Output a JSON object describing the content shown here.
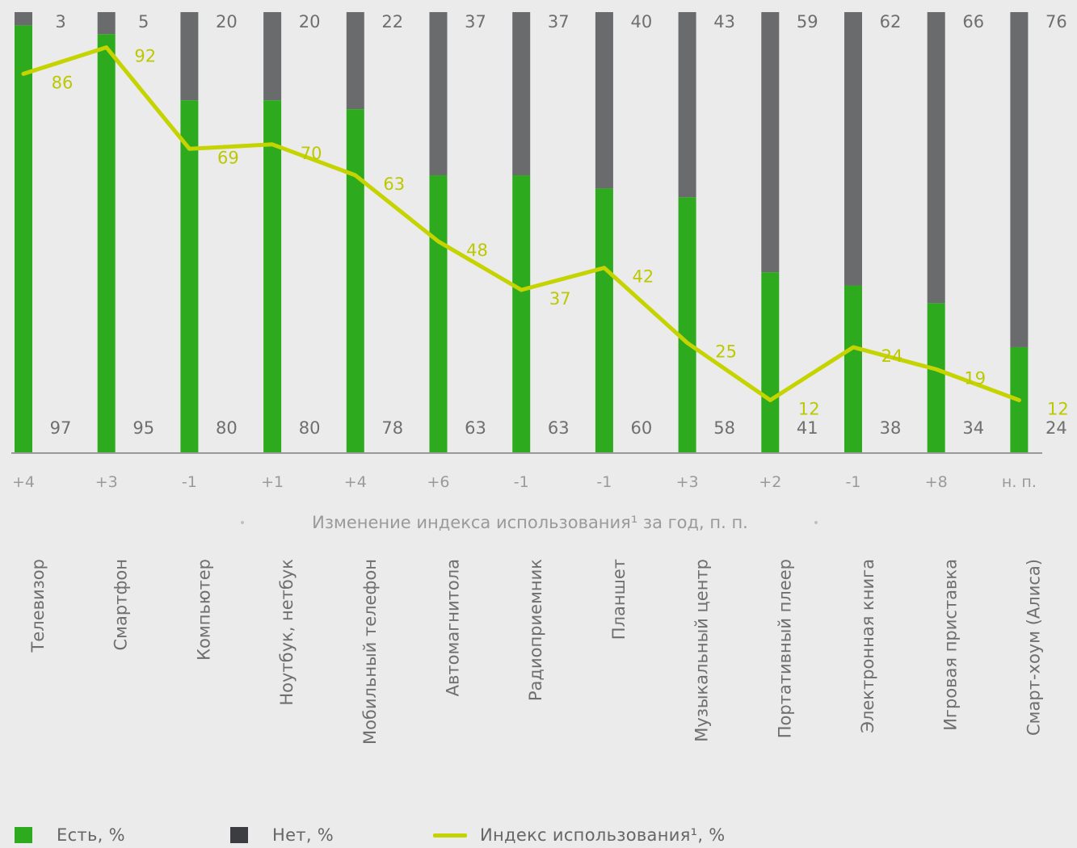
{
  "chart_data": {
    "type": "bar",
    "stacked": true,
    "categories": [
      "Телевизор",
      "Смартфон",
      "Компьютер",
      "Ноутбук, нетбук",
      "Мобильный телефон",
      "Автомагнитола",
      "Радиоприемник",
      "Планшет",
      "Музыкальный центр",
      "Портативный плеер",
      "Электронная книга",
      "Игровая приставка",
      "Смарт-хоум (Алиса)"
    ],
    "series": [
      {
        "name": "Есть, %",
        "color": "#2eaa1e",
        "values": [
          97,
          95,
          80,
          80,
          78,
          63,
          63,
          60,
          58,
          41,
          38,
          34,
          24
        ]
      },
      {
        "name": "Нет, %",
        "color": "#6a6b6d",
        "values": [
          3,
          5,
          20,
          20,
          22,
          37,
          37,
          40,
          43,
          59,
          62,
          66,
          76
        ]
      },
      {
        "name": "Индекс использования¹, %",
        "type": "line",
        "color": "#c5d400",
        "values": [
          86,
          92,
          69,
          70,
          63,
          48,
          37,
          42,
          25,
          12,
          24,
          19,
          12
        ]
      }
    ],
    "change_labels": [
      "+4",
      "+3",
      "-1",
      "+1",
      "+4",
      "+6",
      "-1",
      "-1",
      "+3",
      "+2",
      "-1",
      "+8",
      "н. п."
    ],
    "change_axis_title": "Изменение индекса использования¹ за год, п. п.",
    "ylim": [
      0,
      100
    ],
    "grid": false,
    "legend_position": "bottom"
  },
  "legend": {
    "has_label": "Есть, %",
    "no_label": "Нет, %",
    "index_label": "Индекс использования¹, %"
  }
}
